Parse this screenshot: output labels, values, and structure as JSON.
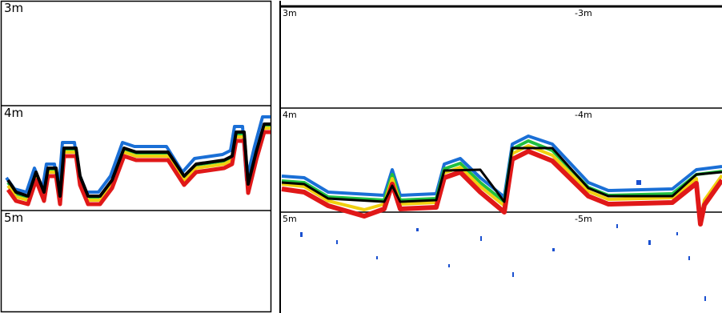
{
  "left_panel": {
    "depth_labels": [
      "3m",
      "4m",
      "5m"
    ]
  },
  "right_panel": {
    "depth_labels": [
      "3m",
      "4m",
      "5m"
    ],
    "repeat_labels": [
      "-3m",
      "-4m",
      "-5m"
    ]
  }
}
